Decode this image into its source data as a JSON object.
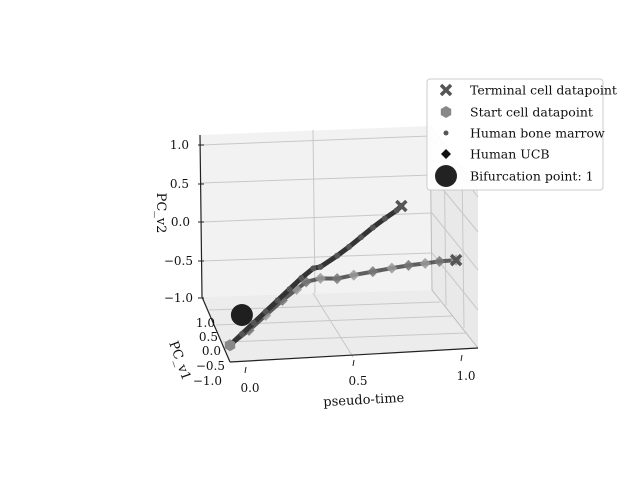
{
  "chart_data": {
    "type": "scatter",
    "projection": "3d",
    "title": "",
    "xlabel": "pseudo-time",
    "ylabel": "PC_v1",
    "zlabel": "PC_v2",
    "xlim": [
      0.0,
      1.0
    ],
    "ylim": [
      -1.0,
      1.0
    ],
    "zlim": [
      -1.0,
      1.0
    ],
    "x_ticks": [
      "0.0",
      "0.5",
      "1.0"
    ],
    "y_ticks": [
      "−1.0",
      "−0.5",
      "0.0",
      "0.5",
      "1.0"
    ],
    "z_ticks": [
      "−1.0",
      "−0.5",
      "0.0",
      "0.5",
      "1.0"
    ],
    "grid": true,
    "legend_position": "top-right",
    "legend": [
      {
        "label": "Terminal cell datapoint",
        "marker": "x-cross",
        "color": "#555555"
      },
      {
        "label": "Start cell datapoint",
        "marker": "hexagon",
        "color": "#888888"
      },
      {
        "label": "Human bone marrow",
        "marker": "dot",
        "color": "#555555"
      },
      {
        "label": "Human UCB",
        "marker": "diamond",
        "color": "#111111"
      },
      {
        "label": "Bifurcation point: 1",
        "marker": "big-circle",
        "color": "#222222"
      }
    ],
    "series": [
      {
        "name": "Human bone marrow",
        "points": [
          [
            0.0,
            0.0,
            -0.95
          ],
          [
            0.05,
            0.0,
            -0.8
          ],
          [
            0.1,
            0.0,
            -0.65
          ],
          [
            0.15,
            0.0,
            -0.5
          ],
          [
            0.2,
            0.0,
            -0.35
          ],
          [
            0.25,
            0.0,
            -0.2
          ],
          [
            0.3,
            0.0,
            -0.05
          ],
          [
            0.35,
            0.0,
            0.08
          ],
          [
            0.38,
            0.0,
            0.1
          ],
          [
            0.45,
            0.0,
            0.25
          ],
          [
            0.5,
            0.0,
            0.37
          ],
          [
            0.55,
            0.0,
            0.5
          ],
          [
            0.6,
            0.0,
            0.63
          ],
          [
            0.65,
            0.0,
            0.75
          ],
          [
            0.7,
            0.0,
            0.86
          ],
          [
            0.72,
            0.0,
            0.92
          ]
        ]
      },
      {
        "name": "Human UCB",
        "points": [
          [
            0.0,
            0.0,
            -0.95
          ],
          [
            0.08,
            0.0,
            -0.75
          ],
          [
            0.15,
            0.0,
            -0.55
          ],
          [
            0.22,
            0.0,
            -0.35
          ],
          [
            0.28,
            0.0,
            -0.2
          ],
          [
            0.32,
            0.0,
            -0.1
          ],
          [
            0.38,
            0.0,
            -0.05
          ],
          [
            0.45,
            0.0,
            -0.05
          ],
          [
            0.52,
            0.0,
            0.0
          ],
          [
            0.6,
            0.0,
            0.05
          ],
          [
            0.68,
            0.0,
            0.1
          ],
          [
            0.75,
            0.0,
            0.14
          ],
          [
            0.82,
            0.0,
            0.17
          ],
          [
            0.88,
            0.0,
            0.2
          ],
          [
            0.95,
            0.0,
            0.22
          ]
        ]
      }
    ],
    "terminal_points": [
      [
        0.72,
        0.0,
        0.92
      ],
      [
        0.95,
        0.0,
        0.22
      ]
    ],
    "start_points": [
      [
        0.0,
        0.0,
        -0.95
      ]
    ],
    "bifurcation_points": [
      [
        0.05,
        0.0,
        -0.55
      ]
    ]
  }
}
